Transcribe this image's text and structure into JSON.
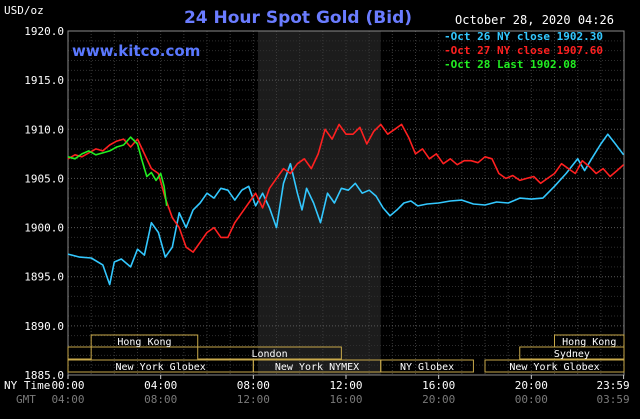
{
  "chart_data": {
    "type": "line",
    "title": "24 Hour Spot Gold (Bid)",
    "brand": "www.kitco.com",
    "timestamp": "October 28, 2020 04:26",
    "ylabel": "USD/oz",
    "ylim": [
      1885,
      1920
    ],
    "y_ticks": [
      "1920.0",
      "1915.0",
      "1910.0",
      "1905.0",
      "1900.0",
      "1895.0",
      "1890.0",
      "1885.0"
    ],
    "x_ticks_ny": [
      "00:00",
      "04:00",
      "08:00",
      "12:00",
      "16:00",
      "20:00",
      "23:59"
    ],
    "x_ticks_gmt": [
      "04:00",
      "08:00",
      "12:00",
      "16:00",
      "20:00",
      "00:00",
      "03:59"
    ],
    "x_tick_hours": [
      0,
      4,
      8,
      12,
      16,
      20,
      23.983
    ],
    "xlabel_ny": "NY Time",
    "xlabel_gmt": "GMT",
    "grid": true,
    "highlight_hours": [
      8.2,
      13.5
    ],
    "sessions": [
      {
        "label": "Hong Kong",
        "row": 0,
        "start": 1.0,
        "end": 5.6
      },
      {
        "label": "",
        "row": 1,
        "start": 0.0,
        "end": 1.0
      },
      {
        "label": "London",
        "row": 1,
        "start": 5.6,
        "end": 11.8
      },
      {
        "label": "New York Globex",
        "row": 2,
        "start": 0.0,
        "end": 8.0
      },
      {
        "label": "New York NYMEX",
        "row": 2,
        "start": 8.0,
        "end": 13.5
      },
      {
        "label": "NY Globex",
        "row": 2,
        "start": 13.5,
        "end": 17.5
      },
      {
        "label": "Hong Kong",
        "row": 0,
        "start": 21.0,
        "end": 24.0
      },
      {
        "label": "Sydney",
        "row": 1,
        "start": 19.5,
        "end": 24.0
      },
      {
        "label": "New York Globex",
        "row": 2,
        "start": 18.0,
        "end": 24.0
      }
    ],
    "series": [
      {
        "name": "Oct 26 NY close 1902.30",
        "color": "#33c8ff",
        "x": [
          0,
          0.5,
          1.0,
          1.5,
          1.8,
          2.0,
          2.3,
          2.7,
          3.0,
          3.3,
          3.6,
          3.9,
          4.2,
          4.5,
          4.8,
          5.1,
          5.4,
          5.7,
          6.0,
          6.3,
          6.6,
          6.9,
          7.2,
          7.5,
          7.8,
          8.1,
          8.4,
          8.7,
          9.0,
          9.3,
          9.6,
          9.9,
          10.1,
          10.3,
          10.6,
          10.9,
          11.2,
          11.5,
          11.8,
          12.1,
          12.4,
          12.7,
          13.0,
          13.3,
          13.6,
          13.9,
          14.2,
          14.5,
          14.8,
          15.1,
          15.5,
          16.0,
          16.5,
          17.0,
          17.5,
          18.0,
          18.5,
          19.0,
          19.5,
          20.0,
          20.5,
          21.0,
          21.5,
          22.0,
          22.3,
          22.6,
          23.0,
          23.3,
          23.6,
          23.983
        ],
        "y": [
          1897.3,
          1897.0,
          1896.9,
          1896.2,
          1894.2,
          1896.5,
          1896.8,
          1896.0,
          1897.8,
          1897.2,
          1900.5,
          1899.5,
          1897.0,
          1898.0,
          1901.5,
          1900.0,
          1901.8,
          1902.5,
          1903.5,
          1903.0,
          1904.0,
          1903.8,
          1902.8,
          1903.8,
          1904.2,
          1902.2,
          1903.5,
          1902.0,
          1900.0,
          1904.5,
          1906.5,
          1903.5,
          1901.8,
          1904.0,
          1902.5,
          1900.5,
          1903.5,
          1902.5,
          1904.0,
          1903.8,
          1904.5,
          1903.5,
          1903.8,
          1903.2,
          1902.0,
          1901.2,
          1901.8,
          1902.5,
          1902.7,
          1902.2,
          1902.4,
          1902.5,
          1902.7,
          1902.8,
          1902.4,
          1902.3,
          1902.6,
          1902.5,
          1903.0,
          1902.9,
          1903.0,
          1904.2,
          1905.5,
          1907.0,
          1905.8,
          1907.0,
          1908.5,
          1909.5,
          1908.6,
          1907.4
        ]
      },
      {
        "name": "Oct 27 NY close 1907.60",
        "color": "#ff2020",
        "x": [
          0,
          0.3,
          0.6,
          0.9,
          1.2,
          1.5,
          1.8,
          2.1,
          2.4,
          2.7,
          3.0,
          3.3,
          3.6,
          3.9,
          4.2,
          4.5,
          4.8,
          5.1,
          5.4,
          5.7,
          6.0,
          6.3,
          6.6,
          6.9,
          7.2,
          7.5,
          7.8,
          8.1,
          8.4,
          8.7,
          9.0,
          9.3,
          9.6,
          9.9,
          10.2,
          10.5,
          10.8,
          11.1,
          11.4,
          11.7,
          12.0,
          12.3,
          12.6,
          12.9,
          13.2,
          13.5,
          13.8,
          14.1,
          14.4,
          14.7,
          15.0,
          15.3,
          15.6,
          15.9,
          16.2,
          16.5,
          16.8,
          17.1,
          17.4,
          17.7,
          18.0,
          18.3,
          18.6,
          18.9,
          19.2,
          19.5,
          19.8,
          20.1,
          20.4,
          20.7,
          21.0,
          21.3,
          21.6,
          21.9,
          22.2,
          22.5,
          22.8,
          23.1,
          23.4,
          23.7,
          23.983
        ],
        "y": [
          1907.0,
          1907.4,
          1907.2,
          1907.6,
          1908.0,
          1907.8,
          1908.4,
          1908.8,
          1909.0,
          1908.2,
          1909.0,
          1907.5,
          1906.0,
          1905.5,
          1903.0,
          1901.0,
          1900.0,
          1898.0,
          1897.5,
          1898.5,
          1899.5,
          1900.0,
          1899.0,
          1899.0,
          1900.5,
          1901.5,
          1902.5,
          1903.5,
          1902.0,
          1904.0,
          1905.0,
          1906.0,
          1905.5,
          1906.5,
          1907.0,
          1906.0,
          1907.5,
          1910.0,
          1909.0,
          1910.5,
          1909.5,
          1909.5,
          1910.2,
          1908.5,
          1909.8,
          1910.5,
          1909.5,
          1910.0,
          1910.5,
          1909.2,
          1907.5,
          1908.0,
          1907.0,
          1907.5,
          1906.5,
          1907.0,
          1906.4,
          1906.8,
          1906.8,
          1906.6,
          1907.2,
          1907.0,
          1905.5,
          1905.0,
          1905.3,
          1904.8,
          1905.0,
          1905.2,
          1904.5,
          1905.0,
          1905.5,
          1906.5,
          1906.0,
          1905.5,
          1906.8,
          1906.2,
          1905.5,
          1906.0,
          1905.2,
          1905.8,
          1906.4
        ]
      },
      {
        "name": "Oct 28 Last 1902.08",
        "color": "#22ee22",
        "x": [
          0,
          0.3,
          0.6,
          0.9,
          1.2,
          1.5,
          1.8,
          2.1,
          2.4,
          2.7,
          3.0,
          3.2,
          3.4,
          3.6,
          3.8,
          4.0,
          4.15,
          4.26
        ],
        "y": [
          1907.2,
          1907.0,
          1907.5,
          1907.8,
          1907.4,
          1907.6,
          1907.8,
          1908.2,
          1908.4,
          1909.2,
          1908.5,
          1906.8,
          1905.2,
          1905.6,
          1904.8,
          1905.5,
          1904.2,
          1902.2
        ]
      }
    ]
  }
}
